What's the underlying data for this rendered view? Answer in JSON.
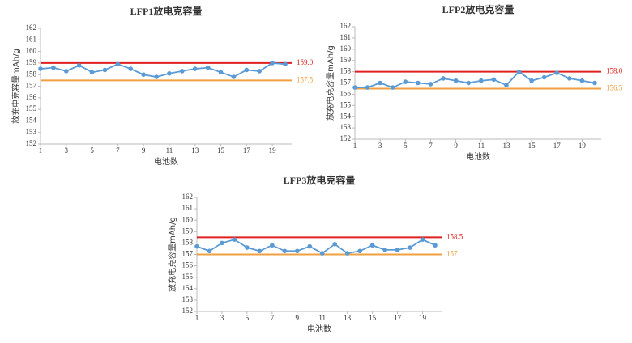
{
  "chart_data": [
    {
      "type": "line",
      "title": "LFP1放电克容量",
      "x_label": "电池数",
      "y_label": "放充电克容量mAh/g",
      "x": [
        1,
        2,
        3,
        4,
        5,
        6,
        7,
        8,
        9,
        10,
        11,
        12,
        13,
        14,
        15,
        16,
        17,
        18,
        19,
        20
      ],
      "series": [
        {
          "color": "#5b9bd5",
          "values": [
            158.5,
            158.6,
            158.3,
            158.8,
            158.2,
            158.4,
            158.9,
            158.5,
            158.0,
            157.8,
            158.1,
            158.3,
            158.5,
            158.6,
            158.2,
            157.8,
            158.4,
            158.3,
            159.0,
            158.9
          ]
        }
      ],
      "xlim": [
        1,
        20
      ],
      "xticks": [
        1,
        3,
        5,
        7,
        9,
        11,
        13,
        15,
        17,
        19
      ],
      "ylim": [
        152,
        162
      ],
      "yticks": [
        152,
        153,
        154,
        155,
        156,
        157,
        158,
        159,
        160,
        161,
        162
      ],
      "ref_lines": [
        {
          "value": 159,
          "value_label": "159.0",
          "color": "#e02020"
        },
        {
          "value": 157.5,
          "color": "#f0a040"
        }
      ]
    },
    {
      "type": "line",
      "title": "LFP2放电克容量",
      "x_label": "电池数",
      "y_label": "放充电克容量mAh/g",
      "x": [
        1,
        2,
        3,
        4,
        5,
        6,
        7,
        8,
        9,
        10,
        11,
        12,
        13,
        14,
        15,
        16,
        17,
        18,
        19,
        20
      ],
      "series": [
        {
          "color": "#5b9bd5",
          "values": [
            156.6,
            156.6,
            157.0,
            156.6,
            157.1,
            157.0,
            156.9,
            157.4,
            157.2,
            157.0,
            157.2,
            157.3,
            156.8,
            158.0,
            157.2,
            157.5,
            157.9,
            157.4,
            157.2,
            157.0
          ]
        }
      ],
      "xlim": [
        1,
        20
      ],
      "xticks": [
        1,
        3,
        5,
        7,
        9,
        11,
        13,
        15,
        17,
        19
      ],
      "ylim": [
        152,
        162
      ],
      "yticks": [
        152,
        153,
        154,
        155,
        156,
        157,
        158,
        159,
        160,
        161,
        162
      ],
      "ref_lines": [
        {
          "value": 158,
          "value_label": "158.0",
          "color": "#e02020"
        },
        {
          "value": 156.5,
          "color": "#f0a040"
        }
      ]
    },
    {
      "type": "line",
      "title": "LFP3放电克容量",
      "x_label": "电池数",
      "y_label": "放充电克容量mAh/g",
      "x": [
        1,
        2,
        3,
        4,
        5,
        6,
        7,
        8,
        9,
        10,
        11,
        12,
        13,
        14,
        15,
        16,
        17,
        18,
        19,
        20
      ],
      "series": [
        {
          "color": "#5b9bd5",
          "values": [
            157.7,
            157.3,
            158.0,
            158.3,
            157.6,
            157.3,
            157.8,
            157.3,
            157.3,
            157.7,
            157.1,
            157.9,
            157.1,
            157.3,
            157.8,
            157.4,
            157.4,
            157.6,
            158.3,
            157.8
          ]
        }
      ],
      "xlim": [
        1,
        20
      ],
      "xticks": [
        1,
        3,
        5,
        7,
        9,
        11,
        13,
        15,
        17,
        19
      ],
      "ylim": [
        152,
        162
      ],
      "yticks": [
        152,
        153,
        154,
        155,
        156,
        157,
        158,
        159,
        160,
        161,
        162
      ],
      "ref_lines": [
        {
          "value": 158.5,
          "color": "#e02020"
        },
        {
          "value": 157,
          "color": "#f0a040"
        }
      ]
    }
  ]
}
